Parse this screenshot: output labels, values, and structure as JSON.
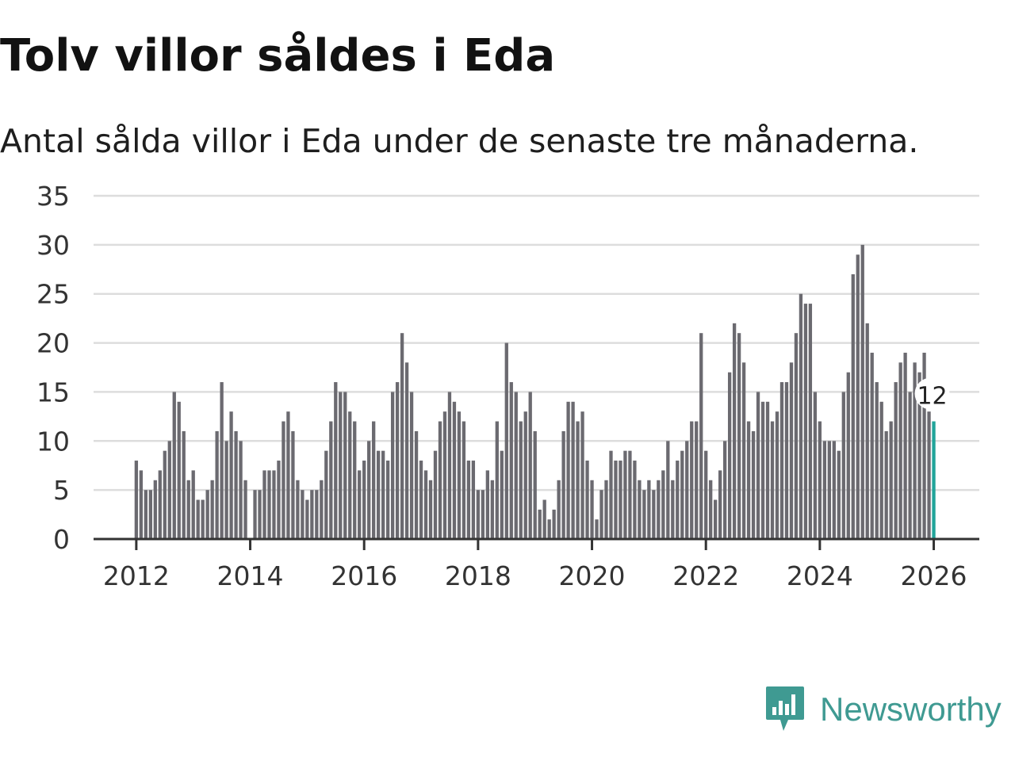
{
  "title": "Tolv villor såldes i Eda",
  "subtitle": "Antal sålda villor i Eda under de senaste tre månaderna.",
  "brand": {
    "name": "Newsworthy",
    "color": "#3f9a92"
  },
  "colors": {
    "bar": "#6b6a70",
    "highlight": "#21a49a",
    "grid": "#dddddd",
    "axis": "#333333",
    "text": "#333333"
  },
  "chart_data": {
    "type": "bar",
    "title": "Tolv villor såldes i Eda",
    "subtitle": "Antal sålda villor i Eda under de senaste tre månaderna.",
    "xlabel": "",
    "ylabel": "",
    "ylim": [
      0,
      35
    ],
    "yticks": [
      0,
      5,
      10,
      15,
      20,
      25,
      30,
      35
    ],
    "xlim": [
      2011.25,
      2026.8
    ],
    "xticks": [
      2012,
      2014,
      2016,
      2018,
      2020,
      2022,
      2024,
      2026
    ],
    "x_start": 2012,
    "x_step_months": 1,
    "last_value_label": "12",
    "values": [
      8,
      7,
      5,
      5,
      6,
      7,
      9,
      10,
      15,
      14,
      11,
      6,
      7,
      4,
      4,
      5,
      6,
      11,
      16,
      10,
      13,
      11,
      10,
      6,
      0,
      5,
      5,
      7,
      7,
      7,
      8,
      12,
      13,
      11,
      6,
      5,
      4,
      5,
      5,
      6,
      9,
      12,
      16,
      15,
      15,
      13,
      12,
      7,
      8,
      10,
      12,
      9,
      9,
      8,
      15,
      16,
      21,
      18,
      15,
      11,
      8,
      7,
      6,
      9,
      12,
      13,
      15,
      14,
      13,
      12,
      8,
      8,
      5,
      5,
      7,
      6,
      12,
      9,
      20,
      16,
      15,
      12,
      13,
      15,
      11,
      3,
      4,
      2,
      3,
      6,
      11,
      14,
      14,
      12,
      13,
      8,
      6,
      2,
      5,
      6,
      9,
      8,
      8,
      9,
      9,
      8,
      6,
      5,
      6,
      5,
      6,
      7,
      10,
      6,
      8,
      9,
      10,
      12,
      12,
      21,
      9,
      6,
      4,
      7,
      10,
      17,
      22,
      21,
      18,
      12,
      11,
      15,
      14,
      14,
      12,
      13,
      16,
      16,
      18,
      21,
      25,
      24,
      24,
      15,
      12,
      10,
      10,
      10,
      9,
      15,
      17,
      27,
      29,
      30,
      22,
      19,
      16,
      14,
      11,
      12,
      16,
      18,
      19,
      15,
      18,
      17,
      19,
      13,
      12
    ]
  }
}
